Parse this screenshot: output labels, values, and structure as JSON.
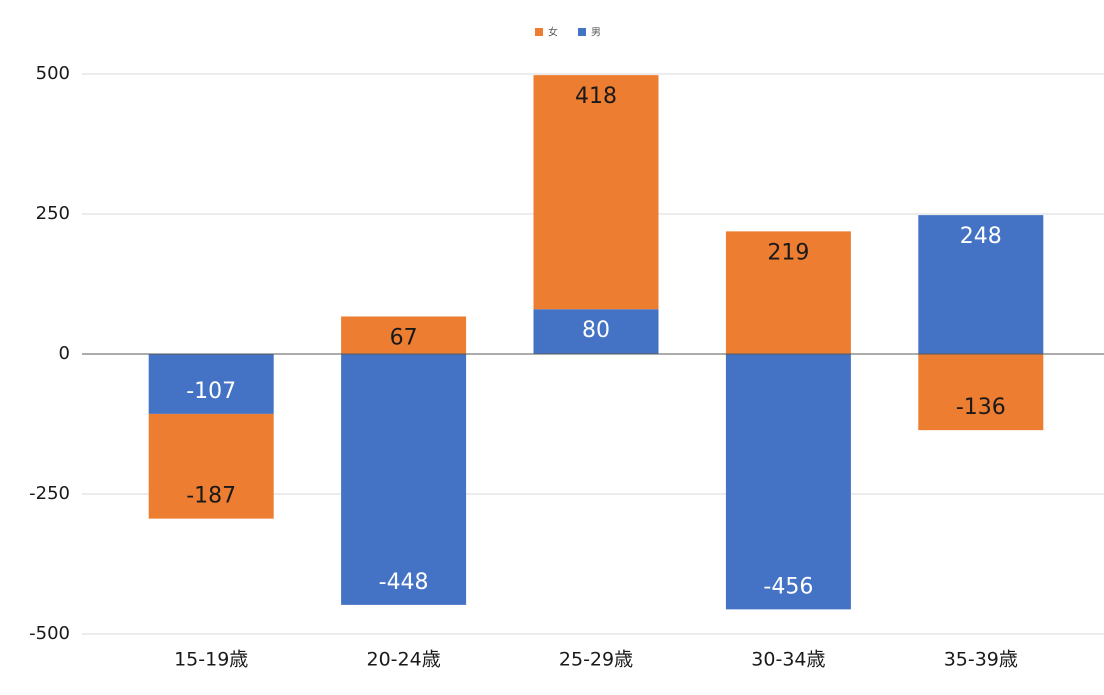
{
  "chart_data": {
    "type": "stacked_bar",
    "categories": [
      "15-19歳",
      "20-24歳",
      "25-29歳",
      "30-34歳",
      "35-39歳"
    ],
    "series": [
      {
        "name": "女",
        "color": "#ed7d31",
        "label_color": "#1a1a1a",
        "values": [
          -187,
          67,
          418,
          219,
          -136
        ]
      },
      {
        "name": "男",
        "color": "#4472c4",
        "label_color": "#ffffff",
        "values": [
          -107,
          -448,
          80,
          -456,
          248
        ]
      }
    ],
    "stack_order": [
      1,
      0
    ],
    "ylim": [
      -500,
      500
    ],
    "yticks": [
      -500,
      -250,
      0,
      250,
      500
    ],
    "grid": true,
    "legend": "top"
  }
}
